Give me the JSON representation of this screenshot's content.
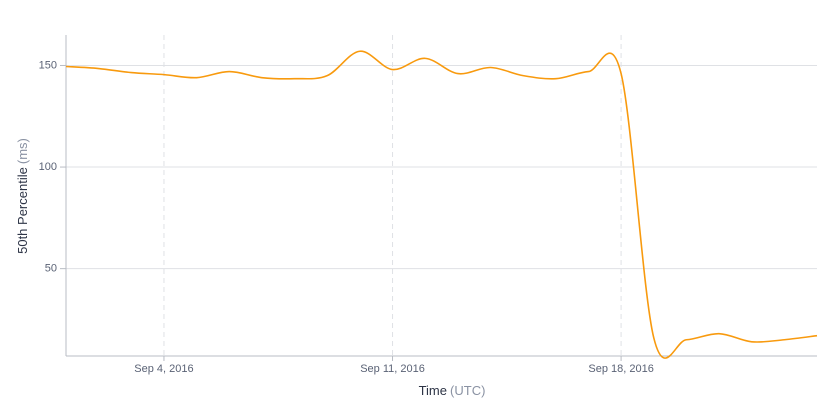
{
  "chart_data": {
    "type": "line",
    "xlabel": "Time",
    "xlabel_unit": "(UTC)",
    "ylabel": "50th Percentile",
    "ylabel_unit": "(ms)",
    "x": [
      "2016-09-01",
      "2016-09-02",
      "2016-09-03",
      "2016-09-04",
      "2016-09-05",
      "2016-09-06",
      "2016-09-07",
      "2016-09-08",
      "2016-09-09",
      "2016-09-10",
      "2016-09-11",
      "2016-09-12",
      "2016-09-13",
      "2016-09-14",
      "2016-09-15",
      "2016-09-16",
      "2016-09-17",
      "2016-09-18",
      "2016-09-19",
      "2016-09-20",
      "2016-09-21",
      "2016-09-22",
      "2016-09-23",
      "2016-09-24"
    ],
    "series": [
      {
        "name": "50th Percentile",
        "color": "#f89a0e",
        "values": [
          149.5,
          148.5,
          146.5,
          145.5,
          144,
          147,
          144,
          143.5,
          145,
          157,
          148,
          153.5,
          146,
          149,
          145,
          143.5,
          147,
          146,
          16,
          15,
          18,
          14,
          15,
          17
        ]
      }
    ],
    "xlim": [
      "2016-09-01",
      "2016-09-24"
    ],
    "xticks": [
      {
        "value": "2016-09-04",
        "label": "Sep 4, 2016"
      },
      {
        "value": "2016-09-11",
        "label": "Sep 11, 2016"
      },
      {
        "value": "2016-09-18",
        "label": "Sep 18, 2016"
      }
    ],
    "ylim": [
      7,
      165
    ],
    "yticks": [
      50,
      100,
      150
    ],
    "grid": true
  }
}
